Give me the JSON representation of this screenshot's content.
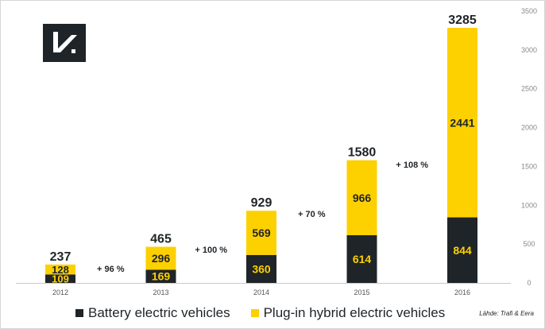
{
  "colors": {
    "bev": "#1f2428",
    "phev": "#fdd000",
    "text_dark": "#1f2428",
    "text_on_dark": "#fdd000",
    "axis": "#888888"
  },
  "logo": {
    "icon": "brand-logo-icon"
  },
  "source": "Lähde: Trafi & Eera",
  "legend": {
    "bev_label": "Battery electric vehicles",
    "phev_label": "Plug-in hybrid electric vehicles"
  },
  "chart_data": {
    "type": "bar",
    "stacked": true,
    "categories": [
      "2012",
      "2013",
      "2014",
      "2015",
      "2016"
    ],
    "series": [
      {
        "name": "Battery electric vehicles",
        "values": [
          109,
          169,
          360,
          614,
          844
        ]
      },
      {
        "name": "Plug-in hybrid electric vehicles",
        "values": [
          128,
          296,
          569,
          966,
          2441
        ]
      }
    ],
    "totals": [
      237,
      465,
      929,
      1580,
      3285
    ],
    "growth_labels": [
      "+ 96 %",
      "+ 100 %",
      "+ 70 %",
      "+ 108 %"
    ],
    "ylim": [
      0,
      3500
    ],
    "yticks": [
      0,
      500,
      1000,
      1500,
      2000,
      2500,
      3000,
      3500
    ],
    "y_axis_side": "right",
    "grid": false,
    "legend_position": "bottom"
  }
}
